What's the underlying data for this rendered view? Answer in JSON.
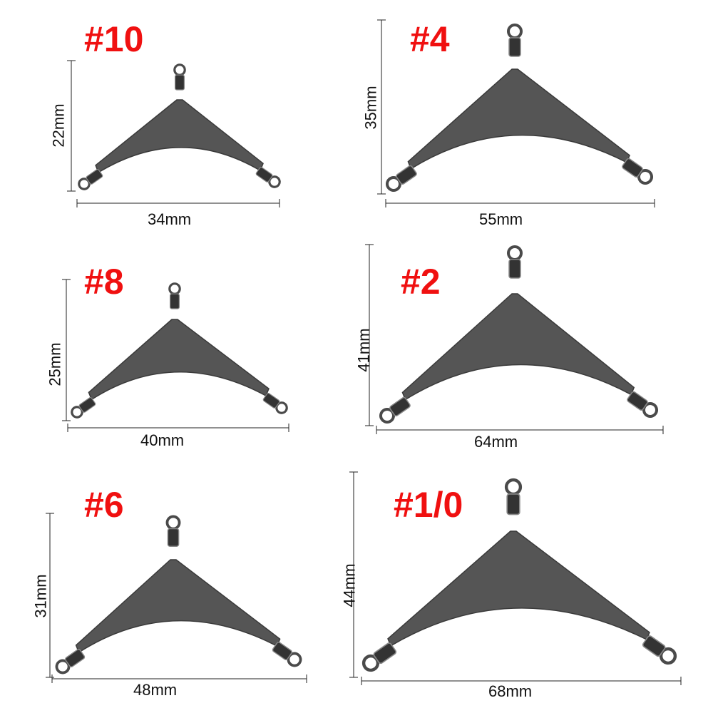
{
  "panels": [
    {
      "size_label": "#10",
      "height_label": "22mm",
      "width_label": "34mm"
    },
    {
      "size_label": "#4",
      "height_label": "35mm",
      "width_label": "55mm"
    },
    {
      "size_label": "#8",
      "height_label": "25mm",
      "width_label": "40mm"
    },
    {
      "size_label": "#2",
      "height_label": "41mm",
      "width_label": "64mm"
    },
    {
      "size_label": "#6",
      "height_label": "31mm",
      "width_label": "48mm"
    },
    {
      "size_label": "#1/0",
      "height_label": "44mm",
      "width_label": "68mm"
    }
  ],
  "colors": {
    "size_label": "#f01010",
    "metal": "#4a4a4a",
    "dimension_line": "#222222"
  }
}
